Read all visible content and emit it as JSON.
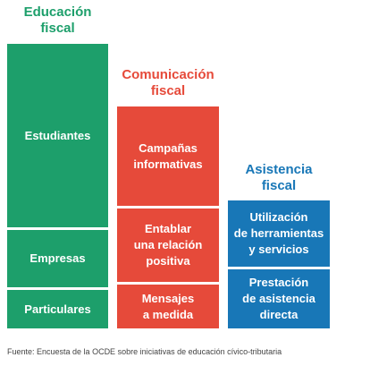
{
  "columns": {
    "education": {
      "title_line1": "Educación",
      "title_line2": "fiscal",
      "color": "#1d9f6b",
      "blocks": [
        "Estudiantes",
        "Empresas",
        "Particulares"
      ]
    },
    "communication": {
      "title_line1": "Comunicación",
      "title_line2": "fiscal",
      "color": "#e64a3a",
      "blocks": [
        {
          "line1": "Campañas",
          "line2": "informativas"
        },
        {
          "line1": "Entablar",
          "line2": "una relación",
          "line3": "positiva"
        },
        {
          "line1": "Mensajes",
          "line2": "a medida"
        }
      ]
    },
    "assistance": {
      "title_line1": "Asistencia",
      "title_line2": "fiscal",
      "color": "#1877b7",
      "blocks": [
        {
          "line1": "Utilización",
          "line2": "de herramientas",
          "line3": "y servicios"
        },
        {
          "line1": "Prestación",
          "line2": "de asistencia",
          "line3": "directa"
        }
      ]
    }
  },
  "source": "Fuente: Encuesta de la OCDE sobre iniciativas de educación cívico-tributaria"
}
